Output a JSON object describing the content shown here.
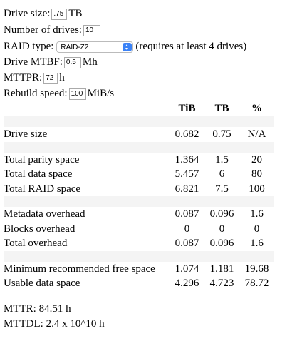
{
  "form": {
    "drive_size": {
      "label": "Drive size:",
      "value": ".75",
      "unit": "TB"
    },
    "num_drives": {
      "label": "Number of drives:",
      "value": "10"
    },
    "raid_type": {
      "label": "RAID type:",
      "value": "RAID-Z2",
      "note": "(requires at least 4 drives)"
    },
    "mtbf": {
      "label": "Drive MTBF:",
      "value": "0.5",
      "unit": "Mh"
    },
    "mttpr": {
      "label": "MTTPR:",
      "value": "72",
      "unit": "h"
    },
    "rebuild": {
      "label": "Rebuild speed:",
      "value": "100",
      "unit": "MiB/s"
    }
  },
  "table": {
    "header": [
      "TiB",
      "TB",
      "%"
    ],
    "groups": [
      [
        [
          "Drive size",
          "0.682",
          "0.75",
          "N/A"
        ]
      ],
      [
        [
          "Total parity space",
          "1.364",
          "1.5",
          "20"
        ],
        [
          "Total data space",
          "5.457",
          "6",
          "80"
        ],
        [
          "Total RAID space",
          "6.821",
          "7.5",
          "100"
        ]
      ],
      [
        [
          "Metadata overhead",
          "0.087",
          "0.096",
          "1.6"
        ],
        [
          "Blocks overhead",
          "0",
          "0",
          "0"
        ],
        [
          "Total overhead",
          "0.087",
          "0.096",
          "1.6"
        ]
      ],
      [
        [
          "Minimum recommended free space",
          "1.074",
          "1.181",
          "19.68"
        ],
        [
          "Usable data space",
          "4.296",
          "4.723",
          "78.72"
        ]
      ]
    ]
  },
  "footer": {
    "mttr": "MTTR: 84.51 h",
    "mttdl": "MTTDL: 2.4 x 10^10 h"
  }
}
